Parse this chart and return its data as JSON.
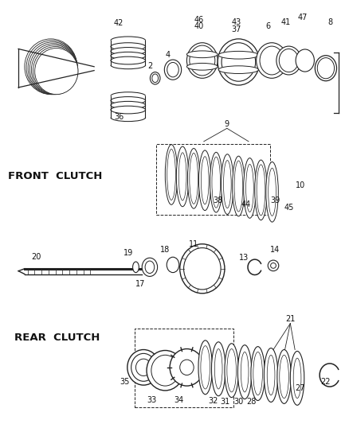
{
  "bg_color": "#ffffff",
  "line_color": "#222222",
  "text_color": "#111111",
  "label_fontsize": 7.0,
  "front_clutch_label": "FRONT  CLUTCH",
  "rear_clutch_label": "REAR  CLUTCH"
}
